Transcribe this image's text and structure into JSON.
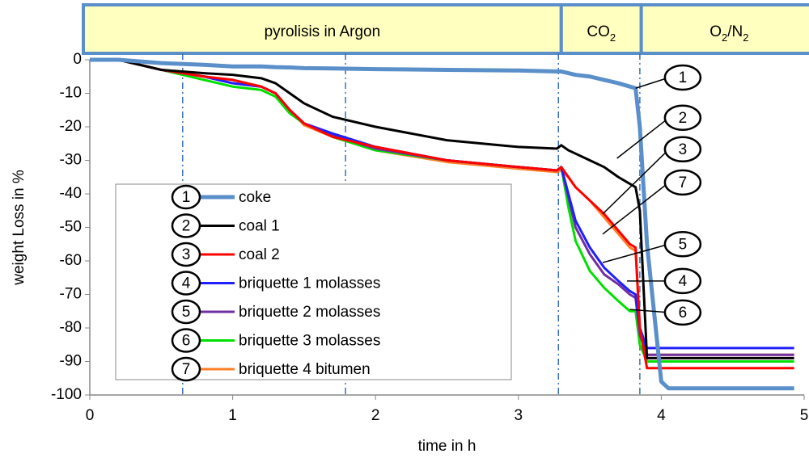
{
  "chart_data": {
    "type": "line",
    "xlabel": "time in h",
    "ylabel": "weight Loss in %",
    "xlim": [
      0,
      5
    ],
    "ylim": [
      -100,
      0
    ],
    "xticks": [
      0,
      1,
      2,
      3,
      4,
      5
    ],
    "yticks": [
      0,
      -10,
      -20,
      -30,
      -40,
      -50,
      -60,
      -70,
      -80,
      -90,
      -100
    ],
    "vlines": [
      0.65,
      1.79,
      3.28,
      3.85
    ],
    "phases": [
      {
        "label": [
          "pyrolisis in Argon"
        ],
        "end": 3.3
      },
      {
        "label": [
          "CO",
          "2"
        ],
        "end": 3.86
      },
      {
        "label": [
          "O",
          "2",
          "/N",
          "2"
        ]
      }
    ],
    "x": [
      0,
      0.2,
      0.5,
      0.8,
      1.0,
      1.2,
      1.3,
      1.4,
      1.5,
      1.7,
      2.0,
      2.5,
      3.0,
      3.27,
      3.3,
      3.35,
      3.4,
      3.5,
      3.6,
      3.7,
      3.78,
      3.82,
      3.85,
      3.9,
      4.0,
      4.05,
      4.5,
      4.93
    ],
    "series": [
      {
        "number": "1",
        "name": "coke",
        "color": "#5b8fc9",
        "width": 5,
        "values": [
          0,
          0,
          -1,
          -1.5,
          -2,
          -2,
          -2.2,
          -2.3,
          -2.5,
          -2.6,
          -2.8,
          -3,
          -3.2,
          -3.5,
          -3.5,
          -4,
          -4.5,
          -5,
          -6,
          -7,
          -8,
          -8.5,
          -20,
          -55,
          -96,
          -98,
          -98,
          -98
        ]
      },
      {
        "number": "2",
        "name": "coal 1",
        "color": "#000000",
        "width": 3,
        "values": [
          0,
          0,
          -3,
          -4,
          -4.5,
          -5.5,
          -7,
          -10,
          -13,
          -17,
          -20,
          -24,
          -26,
          -26.5,
          -25.5,
          -27,
          -28,
          -30,
          -32,
          -35,
          -37,
          -38,
          -45,
          -89,
          -89,
          -89,
          -89,
          -89
        ]
      },
      {
        "number": "3",
        "name": "coal 2",
        "color": "#ff0000",
        "width": 3,
        "values": [
          0,
          0,
          -3,
          -5,
          -6,
          -8,
          -10,
          -15,
          -19,
          -23,
          -26,
          -30,
          -32,
          -33,
          -32,
          -35,
          -38,
          -42,
          -46,
          -51,
          -55,
          -56,
          -80,
          -92,
          -92,
          -92,
          -92,
          -92
        ]
      },
      {
        "number": "4",
        "name": "briquette 1 molasses",
        "color": "#1f1fff",
        "width": 3,
        "values": [
          0,
          0,
          -3,
          -5,
          -7,
          -8,
          -10,
          -15,
          -19,
          -22,
          -26,
          -30,
          -32,
          -33,
          -32,
          -40,
          -48,
          -56,
          -62,
          -66,
          -69,
          -70,
          -80,
          -86,
          -86,
          -86,
          -86,
          -86
        ]
      },
      {
        "number": "5",
        "name": "briquette 2 molasses",
        "color": "#7030a0",
        "width": 3,
        "values": [
          0,
          0,
          -3,
          -5,
          -7,
          -8,
          -10,
          -15,
          -19,
          -22.5,
          -26.5,
          -30,
          -32,
          -33,
          -32,
          -41,
          -50,
          -58,
          -64,
          -67,
          -70,
          -71,
          -82,
          -88,
          -88,
          -88,
          -88,
          -88
        ]
      },
      {
        "number": "6",
        "name": "briquette 3 molasses",
        "color": "#00e000",
        "width": 3,
        "values": [
          0,
          0,
          -3,
          -6,
          -8,
          -9,
          -11,
          -16,
          -19,
          -23,
          -27,
          -30,
          -32,
          -33,
          -32,
          -44,
          -54,
          -63,
          -68,
          -72,
          -75,
          -75,
          -85,
          -90,
          -90,
          -90,
          -90,
          -90
        ]
      },
      {
        "number": "7",
        "name": "briquette 4 bitumen",
        "color": "#ff7f27",
        "width": 3,
        "values": [
          0,
          0,
          -3,
          -5,
          -6,
          -8,
          -10,
          -15,
          -19.5,
          -23,
          -27,
          -30.5,
          -32.5,
          -33.5,
          -33,
          -35,
          -38,
          -42,
          -47,
          -52,
          -56,
          -57,
          -80,
          -88,
          -88,
          -88,
          -88,
          -88
        ]
      }
    ],
    "annotations": [
      {
        "label": "1",
        "x": 4.15,
        "y": -5.3,
        "to": [
          3.82,
          -8.5
        ]
      },
      {
        "label": "2",
        "x": 4.15,
        "y": -17.3,
        "to": [
          3.69,
          -29.4
        ]
      },
      {
        "label": "3",
        "x": 4.15,
        "y": -26.7,
        "to": [
          3.59,
          -46
        ]
      },
      {
        "label": "7",
        "x": 4.15,
        "y": -36.6,
        "to": [
          3.59,
          -52
        ]
      },
      {
        "label": "5",
        "x": 4.15,
        "y": -55,
        "to": [
          3.59,
          -60.5
        ]
      },
      {
        "label": "4",
        "x": 4.15,
        "y": -66,
        "to": [
          3.76,
          -66
        ]
      },
      {
        "label": "6",
        "x": 4.15,
        "y": -75.4,
        "to": [
          3.78,
          -74.5
        ]
      }
    ]
  }
}
